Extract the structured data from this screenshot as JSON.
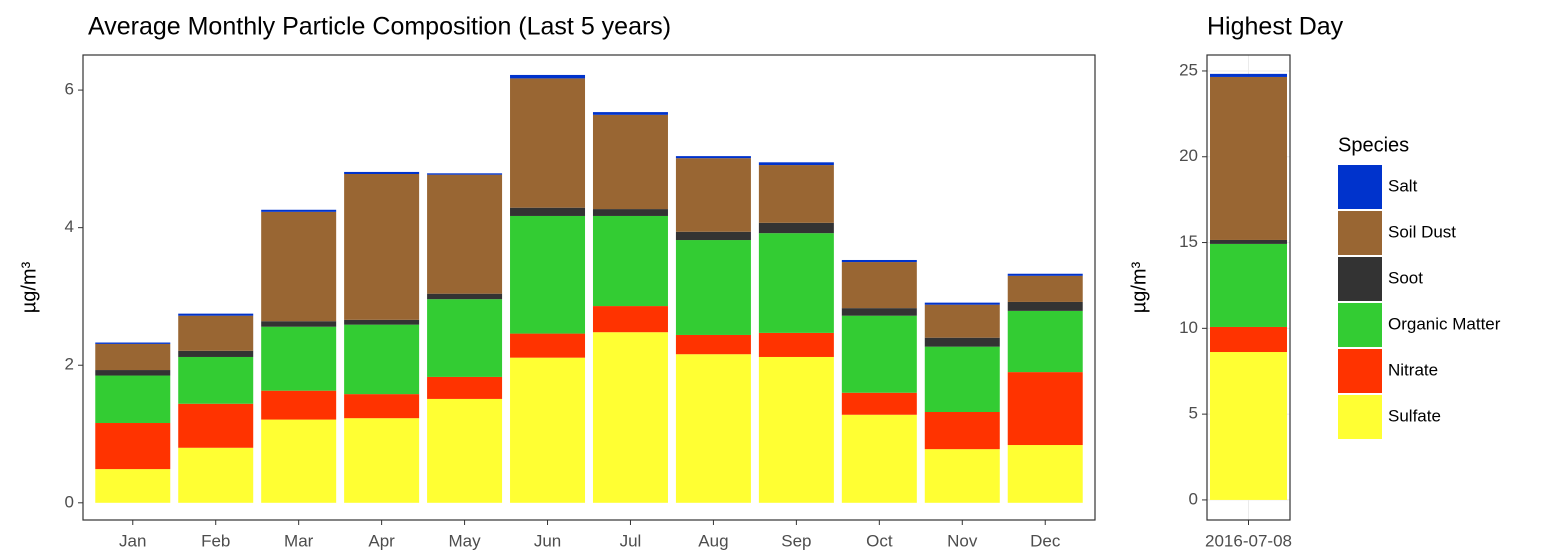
{
  "chart_data": [
    {
      "type": "bar",
      "stacked": true,
      "title": "Average Monthly Particle Composition (Last 5 years)",
      "y_label": "µg/m³",
      "legend_title": "Species",
      "categories": [
        "Jan",
        "Feb",
        "Mar",
        "Apr",
        "May",
        "Jun",
        "Jul",
        "Aug",
        "Sep",
        "Oct",
        "Nov",
        "Dec"
      ],
      "series": [
        {
          "name": "Sulfate",
          "color": "#ffff33",
          "values": [
            0.49,
            0.8,
            1.21,
            1.23,
            1.51,
            2.11,
            2.48,
            2.16,
            2.12,
            1.28,
            0.78,
            0.84
          ]
        },
        {
          "name": "Nitrate",
          "color": "#ff3300",
          "values": [
            0.67,
            0.64,
            0.42,
            0.35,
            0.32,
            0.35,
            0.38,
            0.28,
            0.35,
            0.32,
            0.54,
            1.06
          ]
        },
        {
          "name": "Organic Matter",
          "color": "#33cc33",
          "values": [
            0.69,
            0.68,
            0.93,
            1.01,
            1.13,
            1.71,
            1.31,
            1.38,
            1.45,
            1.12,
            0.95,
            0.89
          ]
        },
        {
          "name": "Soot",
          "color": "#333333",
          "values": [
            0.08,
            0.09,
            0.08,
            0.07,
            0.08,
            0.12,
            0.1,
            0.12,
            0.15,
            0.11,
            0.13,
            0.13
          ]
        },
        {
          "name": "Soil Dust",
          "color": "#996633",
          "values": [
            0.38,
            0.51,
            1.59,
            2.12,
            1.73,
            1.88,
            1.37,
            1.07,
            0.84,
            0.67,
            0.48,
            0.38
          ]
        },
        {
          "name": "Salt",
          "color": "#0033cc",
          "values": [
            0.02,
            0.03,
            0.03,
            0.03,
            0.02,
            0.05,
            0.04,
            0.03,
            0.04,
            0.03,
            0.03,
            0.03
          ]
        }
      ],
      "ylim": [
        -0.25,
        6.51
      ],
      "yticks": [
        0,
        2,
        4,
        6
      ],
      "grid": false
    },
    {
      "type": "bar",
      "stacked": true,
      "title": "Highest Day",
      "y_label": "µg/m³",
      "categories": [
        "2016-07-08"
      ],
      "series": [
        {
          "name": "Sulfate",
          "color": "#ffff33",
          "values": [
            8.62
          ]
        },
        {
          "name": "Nitrate",
          "color": "#ff3300",
          "values": [
            1.46
          ]
        },
        {
          "name": "Organic Matter",
          "color": "#33cc33",
          "values": [
            4.84
          ]
        },
        {
          "name": "Soot",
          "color": "#333333",
          "values": [
            0.23
          ]
        },
        {
          "name": "Soil Dust",
          "color": "#996633",
          "values": [
            9.5
          ]
        },
        {
          "name": "Salt",
          "color": "#0033cc",
          "values": [
            0.18
          ]
        }
      ],
      "ylim": [
        -1.17,
        25.93
      ],
      "yticks": [
        0,
        5,
        10,
        15,
        20,
        25
      ],
      "grid": true
    }
  ]
}
